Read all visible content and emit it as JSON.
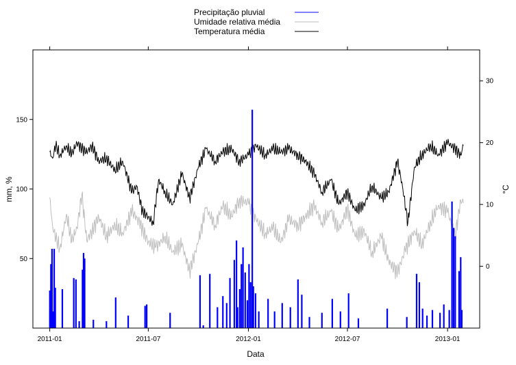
{
  "chart_data": {
    "type": "bar+line",
    "xlabel": "Data",
    "ylabel_left": "mm, %",
    "ylabel_right": "°C",
    "x_range": [
      "2010-12-01",
      "2013-03-01"
    ],
    "ylim_left": [
      0,
      200
    ],
    "ylim_right": [
      -10,
      35
    ],
    "x_ticks": [
      "2011-01",
      "2011-07",
      "2012-01",
      "2012-07",
      "2013-01"
    ],
    "y_ticks_left": [
      50,
      100,
      150
    ],
    "y_ticks_right": [
      0,
      10,
      20,
      30
    ],
    "grid": false,
    "legend_position": "top",
    "colors": {
      "precipitation": "#0000ff",
      "humidity": "#bebebe",
      "temperature": "#000000",
      "left_axis": "#0000ff",
      "frame": "#000000"
    },
    "series": [
      {
        "name": "Precipitação pluvial",
        "kind": "bar",
        "axis": "left",
        "points": [
          [
            "2011-01-01",
            27
          ],
          [
            "2011-01-03",
            46
          ],
          [
            "2011-01-05",
            57
          ],
          [
            "2011-01-07",
            12
          ],
          [
            "2011-01-09",
            57
          ],
          [
            "2011-01-11",
            29
          ],
          [
            "2011-01-24",
            28
          ],
          [
            "2011-02-14",
            36
          ],
          [
            "2011-02-18",
            35
          ],
          [
            "2011-02-24",
            5
          ],
          [
            "2011-03-02",
            42
          ],
          [
            "2011-03-04",
            54
          ],
          [
            "2011-03-06",
            50
          ],
          [
            "2011-03-22",
            6
          ],
          [
            "2011-04-15",
            5
          ],
          [
            "2011-05-02",
            22
          ],
          [
            "2011-05-25",
            9
          ],
          [
            "2011-06-25",
            16
          ],
          [
            "2011-06-28",
            17
          ],
          [
            "2011-08-10",
            11
          ],
          [
            "2011-10-04",
            38
          ],
          [
            "2011-10-10",
            2
          ],
          [
            "2011-10-22",
            39
          ],
          [
            "2011-11-05",
            15
          ],
          [
            "2011-11-15",
            23
          ],
          [
            "2011-11-22",
            18
          ],
          [
            "2011-11-28",
            36
          ],
          [
            "2011-12-06",
            49
          ],
          [
            "2011-12-10",
            63
          ],
          [
            "2011-12-12",
            15
          ],
          [
            "2011-12-16",
            28
          ],
          [
            "2011-12-19",
            46
          ],
          [
            "2011-12-22",
            58
          ],
          [
            "2011-12-26",
            40
          ],
          [
            "2011-12-30",
            20
          ],
          [
            "2012-01-02",
            46
          ],
          [
            "2012-01-05",
            33
          ],
          [
            "2012-01-08",
            157
          ],
          [
            "2012-01-10",
            30
          ],
          [
            "2012-01-14",
            25
          ],
          [
            "2012-01-20",
            12
          ],
          [
            "2012-02-06",
            21
          ],
          [
            "2012-02-18",
            12
          ],
          [
            "2012-03-03",
            18
          ],
          [
            "2012-03-18",
            15
          ],
          [
            "2012-04-01",
            35
          ],
          [
            "2012-04-08",
            24
          ],
          [
            "2012-04-22",
            8
          ],
          [
            "2012-05-15",
            11
          ],
          [
            "2012-06-03",
            21
          ],
          [
            "2012-06-18",
            12
          ],
          [
            "2012-07-03",
            25
          ],
          [
            "2012-07-21",
            7
          ],
          [
            "2012-09-12",
            14
          ],
          [
            "2012-10-18",
            8
          ],
          [
            "2012-11-05",
            39
          ],
          [
            "2012-11-10",
            33
          ],
          [
            "2012-11-16",
            14
          ],
          [
            "2012-11-24",
            9
          ],
          [
            "2012-12-04",
            13
          ],
          [
            "2012-12-18",
            11
          ],
          [
            "2012-12-25",
            17
          ],
          [
            "2013-01-04",
            13
          ],
          [
            "2013-01-09",
            91
          ],
          [
            "2013-01-12",
            72
          ],
          [
            "2013-01-15",
            66
          ],
          [
            "2013-01-22",
            41
          ],
          [
            "2013-01-25",
            51
          ],
          [
            "2013-01-27",
            13
          ]
        ]
      },
      {
        "name": "Umidade relativa média",
        "kind": "line",
        "axis": "left",
        "points": [
          [
            "2011-01-01",
            94
          ],
          [
            "2011-01-06",
            74
          ],
          [
            "2011-01-12",
            64
          ],
          [
            "2011-01-20",
            58
          ],
          [
            "2011-02-01",
            82
          ],
          [
            "2011-02-10",
            62
          ],
          [
            "2011-02-20",
            72
          ],
          [
            "2011-03-01",
            96
          ],
          [
            "2011-03-10",
            63
          ],
          [
            "2011-03-20",
            70
          ],
          [
            "2011-04-01",
            80
          ],
          [
            "2011-04-15",
            66
          ],
          [
            "2011-05-01",
            74
          ],
          [
            "2011-05-15",
            68
          ],
          [
            "2011-06-01",
            84
          ],
          [
            "2011-06-15",
            76
          ],
          [
            "2011-07-01",
            62
          ],
          [
            "2011-07-15",
            58
          ],
          [
            "2011-08-01",
            66
          ],
          [
            "2011-08-15",
            55
          ],
          [
            "2011-09-01",
            60
          ],
          [
            "2011-09-15",
            41
          ],
          [
            "2011-10-01",
            62
          ],
          [
            "2011-10-15",
            86
          ],
          [
            "2011-11-01",
            74
          ],
          [
            "2011-11-15",
            88
          ],
          [
            "2011-12-01",
            80
          ],
          [
            "2011-12-15",
            92
          ],
          [
            "2012-01-01",
            90
          ],
          [
            "2012-01-15",
            78
          ],
          [
            "2012-02-01",
            68
          ],
          [
            "2012-02-15",
            72
          ],
          [
            "2012-03-01",
            62
          ],
          [
            "2012-03-15",
            78
          ],
          [
            "2012-04-01",
            74
          ],
          [
            "2012-04-15",
            80
          ],
          [
            "2012-05-01",
            88
          ],
          [
            "2012-05-15",
            76
          ],
          [
            "2012-06-01",
            84
          ],
          [
            "2012-06-15",
            70
          ],
          [
            "2012-07-01",
            86
          ],
          [
            "2012-07-15",
            66
          ],
          [
            "2012-08-01",
            70
          ],
          [
            "2012-08-15",
            54
          ],
          [
            "2012-09-01",
            66
          ],
          [
            "2012-09-15",
            48
          ],
          [
            "2012-10-01",
            40
          ],
          [
            "2012-10-15",
            56
          ],
          [
            "2012-11-01",
            70
          ],
          [
            "2012-11-15",
            60
          ],
          [
            "2012-12-01",
            76
          ],
          [
            "2012-12-15",
            88
          ],
          [
            "2013-01-01",
            84
          ],
          [
            "2013-01-15",
            66
          ],
          [
            "2013-01-25",
            92
          ],
          [
            "2013-01-30",
            90
          ]
        ]
      },
      {
        "name": "Temperatura média",
        "kind": "line",
        "axis": "right",
        "points": [
          [
            "2011-01-01",
            18.5
          ],
          [
            "2011-01-06",
            17.5
          ],
          [
            "2011-01-12",
            19.5
          ],
          [
            "2011-01-20",
            18
          ],
          [
            "2011-02-01",
            19.5
          ],
          [
            "2011-02-10",
            18
          ],
          [
            "2011-02-20",
            20
          ],
          [
            "2011-03-01",
            19
          ],
          [
            "2011-03-10",
            18.5
          ],
          [
            "2011-03-20",
            19.5
          ],
          [
            "2011-04-01",
            17
          ],
          [
            "2011-04-15",
            17.5
          ],
          [
            "2011-05-01",
            15.5
          ],
          [
            "2011-05-15",
            17
          ],
          [
            "2011-06-01",
            12
          ],
          [
            "2011-06-10",
            13
          ],
          [
            "2011-06-20",
            9
          ],
          [
            "2011-07-01",
            8
          ],
          [
            "2011-07-10",
            7
          ],
          [
            "2011-07-20",
            14
          ],
          [
            "2011-08-01",
            12
          ],
          [
            "2011-08-15",
            10
          ],
          [
            "2011-09-01",
            15
          ],
          [
            "2011-09-15",
            11
          ],
          [
            "2011-10-01",
            16
          ],
          [
            "2011-10-15",
            19
          ],
          [
            "2011-11-01",
            17
          ],
          [
            "2011-11-15",
            18.5
          ],
          [
            "2011-12-01",
            19
          ],
          [
            "2011-12-15",
            17
          ],
          [
            "2012-01-01",
            18
          ],
          [
            "2012-01-15",
            19.5
          ],
          [
            "2012-02-01",
            18
          ],
          [
            "2012-02-15",
            19
          ],
          [
            "2012-03-01",
            18.5
          ],
          [
            "2012-03-15",
            19
          ],
          [
            "2012-04-01",
            18
          ],
          [
            "2012-04-15",
            17
          ],
          [
            "2012-05-01",
            15
          ],
          [
            "2012-05-15",
            12
          ],
          [
            "2012-06-01",
            14
          ],
          [
            "2012-06-15",
            10
          ],
          [
            "2012-07-01",
            12
          ],
          [
            "2012-07-15",
            9
          ],
          [
            "2012-08-01",
            10
          ],
          [
            "2012-08-15",
            13
          ],
          [
            "2012-09-01",
            11
          ],
          [
            "2012-09-15",
            12
          ],
          [
            "2012-10-01",
            17
          ],
          [
            "2012-10-10",
            13
          ],
          [
            "2012-10-20",
            7
          ],
          [
            "2012-11-01",
            16
          ],
          [
            "2012-11-15",
            18
          ],
          [
            "2012-12-01",
            19.5
          ],
          [
            "2012-12-15",
            18
          ],
          [
            "2013-01-01",
            20
          ],
          [
            "2013-01-15",
            19
          ],
          [
            "2013-01-25",
            18
          ],
          [
            "2013-01-30",
            19.5
          ]
        ]
      }
    ]
  }
}
